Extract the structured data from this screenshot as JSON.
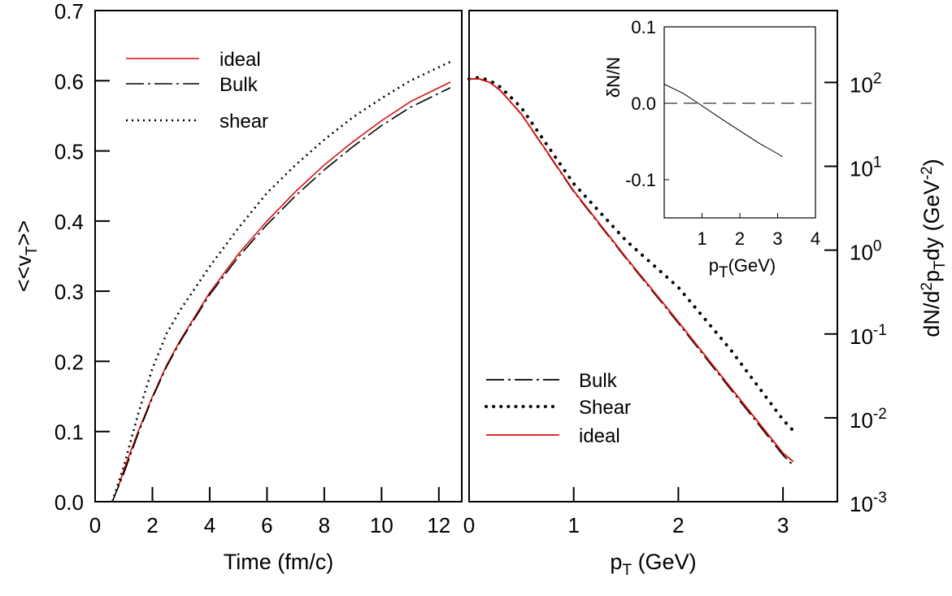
{
  "colors": {
    "ideal": "#d81010",
    "bulk": "#000000",
    "shear": "#000000",
    "frame": "#000000"
  },
  "chart_data": [
    {
      "type": "line",
      "xlabel": "Time (fm/c)",
      "ylabel": "<<v_T>>",
      "xlim": [
        0,
        12.8
      ],
      "ylim": [
        0,
        0.7
      ],
      "xticks": [
        "0",
        "2",
        "4",
        "6",
        "8",
        "10",
        "12"
      ],
      "yticks": [
        "0.0",
        "0.1",
        "0.2",
        "0.3",
        "0.4",
        "0.5",
        "0.6",
        "0.7"
      ],
      "legend_placement": "top-left",
      "series": [
        {
          "name": "ideal",
          "style": "solid",
          "color": "#d81010",
          "x": [
            0.8,
            1,
            1.5,
            2,
            2.5,
            3,
            4,
            5,
            6,
            7,
            8,
            9,
            10,
            11,
            12.4
          ],
          "y": [
            0.02,
            0.045,
            0.1,
            0.15,
            0.195,
            0.232,
            0.298,
            0.353,
            0.4,
            0.442,
            0.48,
            0.513,
            0.543,
            0.57,
            0.598
          ]
        },
        {
          "name": "Bulk",
          "style": "dash-dot",
          "color": "#000000",
          "x": [
            0.6,
            1,
            1.5,
            2,
            2.5,
            3,
            4,
            5,
            6,
            7,
            8,
            9,
            10,
            11,
            12.4
          ],
          "y": [
            0.0,
            0.04,
            0.097,
            0.148,
            0.193,
            0.23,
            0.295,
            0.349,
            0.395,
            0.436,
            0.473,
            0.506,
            0.536,
            0.562,
            0.59
          ]
        },
        {
          "name": "shear",
          "style": "dotted",
          "color": "#000000",
          "x": [
            0.6,
            1,
            1.5,
            2,
            2.5,
            3,
            4,
            5,
            6,
            7,
            8,
            9,
            10,
            11,
            12.4
          ],
          "y": [
            0.0,
            0.05,
            0.125,
            0.19,
            0.24,
            0.275,
            0.335,
            0.39,
            0.44,
            0.48,
            0.516,
            0.548,
            0.575,
            0.6,
            0.627
          ]
        }
      ]
    },
    {
      "type": "line",
      "xlabel": "p_T (GeV)",
      "ylabel": "dN/d^2p_Tdy (GeV^-2)",
      "yscale": "log",
      "xlim": [
        0,
        3.52
      ],
      "ylim": [
        0.001,
        720
      ],
      "xticks": [
        "0",
        "1",
        "2",
        "3"
      ],
      "yticks": [
        {
          "base": "10",
          "exp": "-3"
        },
        {
          "base": "10",
          "exp": "-2"
        },
        {
          "base": "10",
          "exp": "-1"
        },
        {
          "base": "10",
          "exp": "0"
        },
        {
          "base": "10",
          "exp": "1"
        },
        {
          "base": "10",
          "exp": "2"
        }
      ],
      "legend_placement": "bottom-left",
      "series": [
        {
          "name": "Bulk",
          "style": "dash-dot",
          "color": "#000000",
          "x": [
            0,
            0.1,
            0.2,
            0.3,
            0.5,
            1,
            1.5,
            2,
            2.5,
            3,
            3.1
          ],
          "y": [
            110,
            110,
            100,
            80,
            42,
            5.0,
            0.8,
            0.135,
            0.022,
            0.0036,
            0.0027
          ]
        },
        {
          "name": "Shear",
          "style": "dotted",
          "color": "#000000",
          "x": [
            0,
            0.1,
            0.2,
            0.3,
            0.5,
            1,
            1.5,
            2,
            2.5,
            3,
            3.1
          ],
          "y": [
            110,
            115,
            105,
            88,
            50,
            6.2,
            1.3,
            0.36,
            0.065,
            0.0095,
            0.007
          ]
        },
        {
          "name": "ideal",
          "style": "solid",
          "color": "#d81010",
          "x": [
            0,
            0.1,
            0.2,
            0.3,
            0.5,
            1,
            1.5,
            2,
            2.5,
            3,
            3.1
          ],
          "y": [
            110,
            110,
            100,
            80,
            42,
            5.1,
            0.82,
            0.14,
            0.023,
            0.0038,
            0.003
          ]
        }
      ]
    },
    {
      "type": "line",
      "role": "inset",
      "xlabel": "p_T(GeV)",
      "ylabel": "δN/N",
      "xlim": [
        0,
        4
      ],
      "ylim": [
        -0.15,
        0.1
      ],
      "xticks": [
        "1",
        "2",
        "3",
        "4"
      ],
      "yticks": [
        "0.1",
        "0.0",
        "-0.1"
      ],
      "series": [
        {
          "style": "solid",
          "color": "#000000",
          "x": [
            0,
            0.5,
            0.9,
            1.5,
            2,
            2.5,
            3,
            3.13
          ],
          "y": [
            0.025,
            0.013,
            0.0,
            -0.02,
            -0.036,
            -0.052,
            -0.066,
            -0.07
          ]
        },
        {
          "style": "dashed",
          "color": "#000000",
          "x": [
            0,
            3.9
          ],
          "y": [
            0,
            0
          ]
        }
      ]
    }
  ]
}
